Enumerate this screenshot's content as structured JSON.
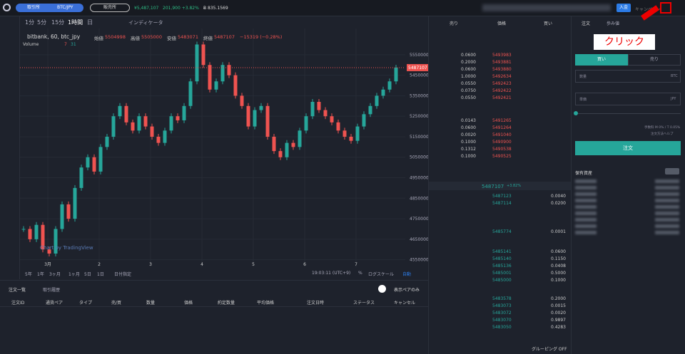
{
  "top_bar": {
    "exchange": "取引所",
    "pair": "BTC/JPY",
    "sales": "販売所",
    "price": "¥5,487,107",
    "change": "201,900 +3.82%",
    "balance": "Ƀ 835.1569",
    "deposit": "入金",
    "campaign": "キャンペーン"
  },
  "toolbar": {
    "intervals": [
      "1分",
      "5分",
      "15分",
      "1時間",
      "日"
    ],
    "indicator": "インディケータ"
  },
  "chart": {
    "title": "bitbank, 60, btc_jpy",
    "legend": [
      {
        "label": "始値",
        "value": "5504998"
      },
      {
        "label": "高値",
        "value": "5505000"
      },
      {
        "label": "安値",
        "value": "5483071"
      },
      {
        "label": "終値",
        "value": "5487107"
      }
    ],
    "change": "−15319 (−0.28%)",
    "volume": "Volume",
    "volume_values": [
      "7",
      "31"
    ],
    "watermark": "Chart by TradingView",
    "ylim": [
      4514000,
      5678000
    ],
    "yticks": [
      5550000,
      5450000,
      5350000,
      5250000,
      5150000,
      5050000,
      4950000,
      4850000,
      4750000,
      4650000,
      4550000
    ],
    "last_price": 5487107,
    "xlabels": [
      "3月",
      "2",
      "3",
      "4",
      "5",
      "6",
      "7"
    ],
    "closes": [
      4700000,
      4650000,
      4720000,
      4600000,
      4580000,
      4700000,
      4820000,
      4750000,
      4900000,
      5000000,
      5050000,
      4980000,
      5100000,
      5150000,
      5250000,
      5300000,
      5220000,
      5180000,
      5250000,
      5200000,
      5150000,
      5120000,
      5180000,
      5250000,
      5230000,
      5300000,
      5420000,
      5600000,
      5500000,
      5380000,
      5420000,
      5500000,
      5450000,
      5350000,
      5300000,
      5200000,
      5280000,
      5300000,
      5150000,
      5080000,
      5050000,
      5120000,
      5100000,
      5180000,
      5250000,
      5320000,
      5280000,
      5250000,
      5220000,
      5180000,
      5150000,
      5130000,
      5200000,
      5260000,
      5300000,
      5350000,
      5380000,
      5420000,
      5487107
    ]
  },
  "range_bar": {
    "ranges": [
      "5年",
      "1年",
      "3ヶ月",
      "1ヶ月",
      "5日",
      "1日",
      "日付指定"
    ],
    "time": "19:03:11 (UTC+9)",
    "percent": "%",
    "log": "ログスケール",
    "auto": "自動"
  },
  "orders": {
    "tabs": [
      "注文一覧",
      "取引履歴"
    ],
    "pair_only": "表示ペアのみ",
    "columns": [
      "注文ID",
      "通貨ペア",
      "タイプ",
      "売/買",
      "数量",
      "価格",
      "約定数量",
      "平均価格",
      "注文日時",
      "ステータス",
      "キャンセル"
    ]
  },
  "order_book": {
    "headers": [
      "売り",
      "価格",
      "買い"
    ],
    "asks": [
      {
        "amount": "0.0600",
        "price": "5493983"
      },
      {
        "amount": "0.2000",
        "price": "5493881"
      },
      {
        "amount": "0.0600",
        "price": "5493880"
      },
      {
        "amount": "1.0000",
        "price": "5492634"
      },
      {
        "amount": "0.0550",
        "price": "5492423"
      },
      {
        "amount": "0.0750",
        "price": "5492422"
      },
      {
        "amount": "0.0550",
        "price": "5492421"
      },
      {
        "amount": "0.0143",
        "price": "5491265"
      },
      {
        "amount": "0.0600",
        "price": "5491264"
      },
      {
        "amount": "0.0020",
        "price": "5491040"
      },
      {
        "amount": "0.1000",
        "price": "5490900"
      },
      {
        "amount": "0.1312",
        "price": "5490538"
      },
      {
        "amount": "0.1000",
        "price": "5490525"
      }
    ],
    "mid": "5487107",
    "mid_change": "+3.82%",
    "bids": [
      {
        "price": "5487123",
        "amount": "0.0040"
      },
      {
        "price": "5487114",
        "amount": "0.0200"
      },
      {
        "price": "5485774",
        "amount": "0.0001"
      },
      {
        "price": "5485141",
        "amount": "0.0600"
      },
      {
        "price": "5485140",
        "amount": "0.1150"
      },
      {
        "price": "5485136",
        "amount": "0.0408"
      },
      {
        "price": "5485001",
        "amount": "0.5000"
      },
      {
        "price": "5485000",
        "amount": "0.1000"
      },
      {
        "price": "5483578",
        "amount": "0.2000"
      },
      {
        "price": "5483073",
        "amount": "0.0015"
      },
      {
        "price": "5483072",
        "amount": "0.0020"
      },
      {
        "price": "5483070",
        "amount": "0.9897"
      },
      {
        "price": "5483050",
        "amount": "0.4283"
      }
    ],
    "grouping": "グルーピング OFF"
  },
  "order_form": {
    "tabs": [
      "注文",
      "歩み値"
    ],
    "annotation": "クリック",
    "sides": [
      "買い",
      "売り"
    ],
    "quantity": "数量",
    "quantity_unit": "BTC",
    "unit_price": "単価",
    "price_unit": "JPY",
    "fee": "手数料 M 0% / T 0.05%",
    "help": "注文方法ヘルプ",
    "submit": "注文",
    "assets": "保有資産"
  }
}
